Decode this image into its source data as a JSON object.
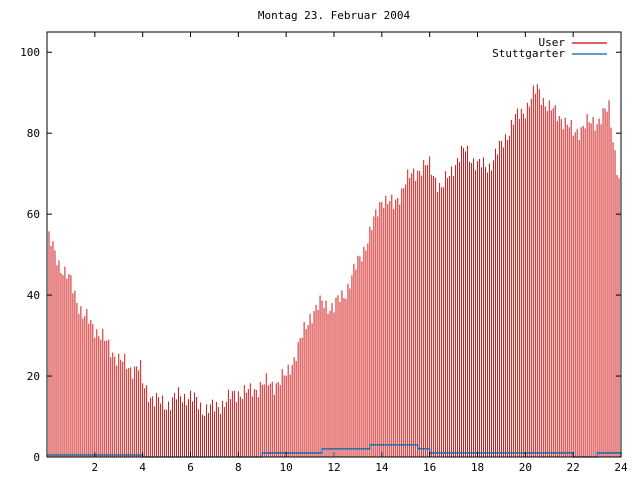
{
  "chart_data": {
    "type": "bar",
    "title": "Montag 23. Februar 2004",
    "xlabel": "",
    "ylabel": "",
    "xlim": [
      0,
      24
    ],
    "ylim": [
      0,
      105
    ],
    "xticks": [
      "2",
      "4",
      "6",
      "8",
      "10",
      "12",
      "14",
      "16",
      "18",
      "20",
      "22",
      "24"
    ],
    "yticks": [
      "0",
      "20",
      "40",
      "60",
      "80",
      "100"
    ],
    "grid": false,
    "legend_position": "top-right",
    "series": [
      {
        "name": "User",
        "color": "#cc0000",
        "style": "impulses",
        "x_hours": [
          0,
          0.5,
          1,
          1.5,
          2,
          2.5,
          3,
          3.5,
          3.9,
          4,
          4.5,
          5,
          5.5,
          6,
          6.5,
          7,
          7.5,
          8,
          8.5,
          9,
          9.5,
          10,
          10.5,
          11,
          11.5,
          12,
          12.5,
          13,
          13.5,
          14,
          14.5,
          15,
          15.5,
          16,
          16.5,
          17,
          17.5,
          18,
          18.5,
          19,
          19.5,
          20,
          20.5,
          21,
          21.5,
          22,
          22.5,
          23,
          23.5,
          24
        ],
        "values": [
          55,
          48,
          43,
          35,
          32,
          28,
          24,
          22,
          22,
          18,
          14,
          13,
          15,
          15,
          12,
          12,
          14,
          16,
          16,
          18,
          18,
          20,
          27,
          35,
          38,
          37,
          41,
          48,
          55,
          64,
          62,
          68,
          71,
          72,
          66,
          72,
          76,
          72,
          72,
          77,
          83,
          86,
          91,
          86,
          84,
          80,
          82,
          83,
          86,
          65
        ]
      },
      {
        "name": "Stuttgarter",
        "color": "#0066aa",
        "style": "steps",
        "x_hours": [
          0,
          4,
          9,
          11.5,
          13.5,
          15.5,
          16,
          20,
          22,
          23,
          24
        ],
        "values": [
          0.5,
          0,
          1,
          2,
          3,
          2,
          1,
          1,
          0,
          1,
          0
        ]
      }
    ]
  }
}
